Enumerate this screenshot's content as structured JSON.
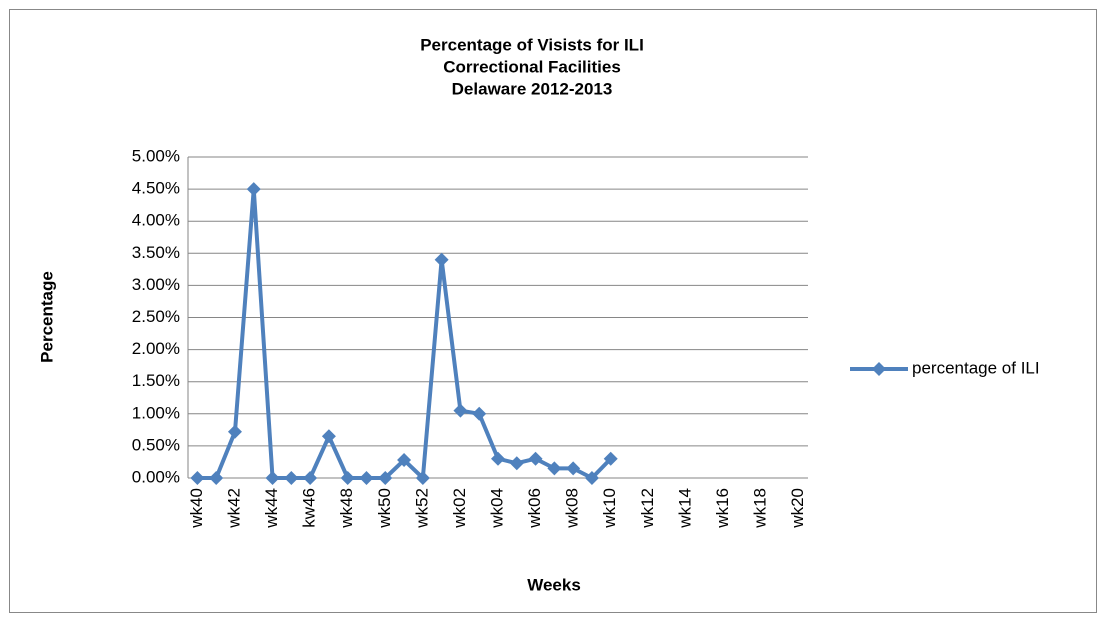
{
  "chart_data": {
    "type": "line",
    "title": [
      "Percentage of Visists for ILI",
      "Correctional Facilities",
      "Delaware 2012-2013"
    ],
    "x_label": "Weeks",
    "y_label": "Percentage",
    "categories": [
      "wk40",
      null,
      "wk42",
      null,
      "wk44",
      null,
      "kw46",
      null,
      "wk48",
      null,
      "wk50",
      null,
      "wk52",
      null,
      "wk02",
      null,
      "wk04",
      null,
      "wk06",
      null,
      "wk08",
      null,
      "wk10",
      null,
      "wk12",
      null,
      "wk14",
      null,
      "wk16",
      null,
      "wk18",
      null,
      "wk20"
    ],
    "series": [
      {
        "name": "percentage of ILI",
        "color": "#4f81bd",
        "values": [
          0,
          0,
          0.72,
          4.5,
          0,
          0,
          0,
          0.65,
          0,
          0,
          0,
          0.28,
          0,
          3.4,
          1.05,
          1.0,
          0.3,
          0.23,
          0.3,
          0.15,
          0.15,
          0,
          0.3,
          null,
          null,
          null,
          null,
          null,
          null,
          null,
          null,
          null,
          null
        ]
      }
    ],
    "ylim": [
      0,
      5
    ],
    "yticks": [
      {
        "value": 0,
        "label": "0.00%"
      },
      {
        "value": 0.5,
        "label": "0.50%"
      },
      {
        "value": 1,
        "label": "1.00%"
      },
      {
        "value": 1.5,
        "label": "1.50%"
      },
      {
        "value": 2,
        "label": "2.00%"
      },
      {
        "value": 2.5,
        "label": "2.50%"
      },
      {
        "value": 3,
        "label": "3.00%"
      },
      {
        "value": 3.5,
        "label": "3.50%"
      },
      {
        "value": 4,
        "label": "4.00%"
      },
      {
        "value": 4.5,
        "label": "4.50%"
      },
      {
        "value": 5,
        "label": "5.00%"
      }
    ],
    "grid": true,
    "legend": "right"
  }
}
